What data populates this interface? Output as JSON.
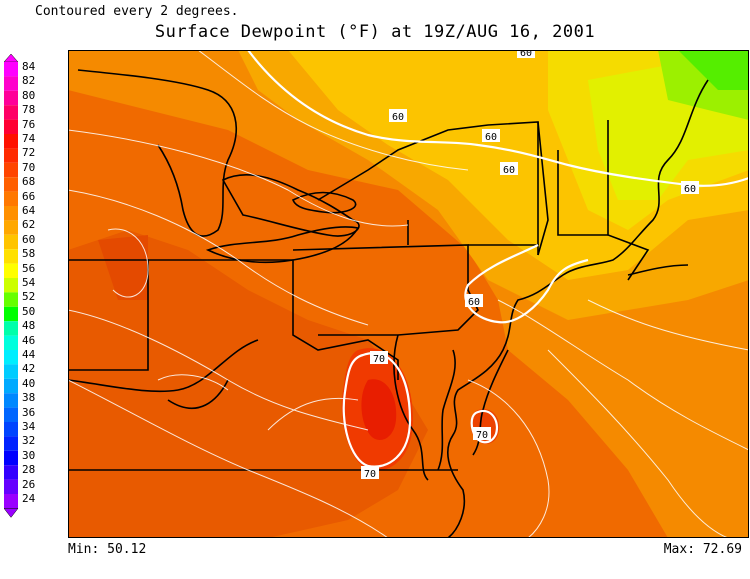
{
  "header": {
    "note": "Contoured every 2 degrees.",
    "title": "Surface Dewpoint (°F) at 19Z/AUG 16, 2001"
  },
  "footer": {
    "min_label": "Min: 50.12",
    "max_label": "Max: 72.69"
  },
  "legend": {
    "labels": [
      "84",
      "82",
      "80",
      "78",
      "76",
      "74",
      "72",
      "70",
      "68",
      "66",
      "64",
      "62",
      "60",
      "58",
      "56",
      "54",
      "52",
      "50",
      "48",
      "46",
      "44",
      "42",
      "40",
      "38",
      "36",
      "34",
      "32",
      "30",
      "28",
      "26",
      "24"
    ],
    "colors": [
      "#ff00ff",
      "#ff00cc",
      "#ff0099",
      "#ff0066",
      "#ff0033",
      "#ff1100",
      "#ff2a00",
      "#ff4500",
      "#ff5f00",
      "#ff7800",
      "#ff9000",
      "#ffa800",
      "#ffc400",
      "#ffe000",
      "#ffff00",
      "#ccff00",
      "#66ff00",
      "#00ff00",
      "#00ffaa",
      "#00ffdd",
      "#00eeff",
      "#00ccff",
      "#00aaff",
      "#0088ff",
      "#0066ff",
      "#0044ff",
      "#0022ff",
      "#0000ff",
      "#3300ff",
      "#6600ff",
      "#9900ff"
    ]
  },
  "map": {
    "contour_labels": [
      {
        "id": "c60-ny",
        "text": "60"
      },
      {
        "id": "c60-nne",
        "text": "60"
      },
      {
        "id": "c60-ne1",
        "text": "60"
      },
      {
        "id": "c60-ne2",
        "text": "60"
      },
      {
        "id": "c60-nj",
        "text": "60"
      },
      {
        "id": "c60-top",
        "text": "60"
      },
      {
        "id": "c70-va-n",
        "text": "70"
      },
      {
        "id": "c70-va-s",
        "text": "70"
      },
      {
        "id": "c70-de",
        "text": "70"
      }
    ]
  }
}
